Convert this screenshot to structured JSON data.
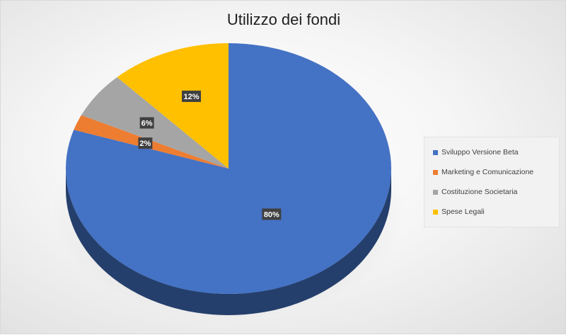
{
  "chart_data": {
    "type": "pie",
    "title": "Utilizzo dei fondi",
    "categories": [
      "Sviluppo Versione Beta",
      "Marketing e Comunicazione",
      "Costituzione Societaria",
      "Spese Legali"
    ],
    "values": [
      80,
      2,
      6,
      12
    ],
    "data_labels": [
      "80%",
      "2%",
      "6%",
      "12%"
    ],
    "colors": [
      "#4472C4",
      "#ED7D31",
      "#A5A5A5",
      "#FFC000"
    ],
    "legend_position": "right",
    "style": "3d"
  }
}
